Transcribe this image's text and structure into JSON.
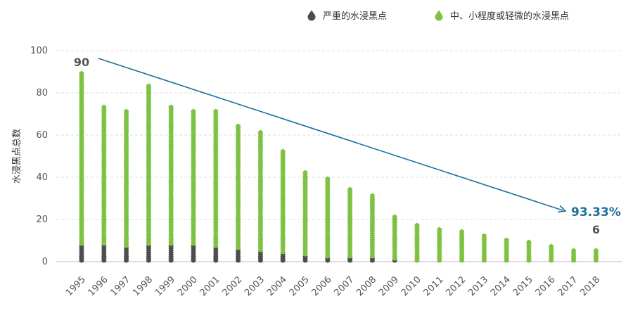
{
  "chart_data": {
    "type": "bar",
    "stacked": true,
    "categories": [
      "1995",
      "1996",
      "1997",
      "1998",
      "1999",
      "2000",
      "2001",
      "2002",
      "2003",
      "2004",
      "2005",
      "2006",
      "2007",
      "2008",
      "2009",
      "2010",
      "2011",
      "2012",
      "2013",
      "2014",
      "2015",
      "2016",
      "2017",
      "2018"
    ],
    "series": [
      {
        "name": "严重的水浸黑点",
        "color": "#4d4d4d",
        "values": [
          8,
          8,
          7,
          8,
          8,
          8,
          7,
          6,
          5,
          4,
          3,
          2,
          2,
          2,
          1,
          0,
          0,
          0,
          0,
          0,
          0,
          0,
          0,
          0
        ]
      },
      {
        "name": "中、小程度或轻微的水浸黑点",
        "color": "#7dc242",
        "values": [
          82,
          66,
          65,
          76,
          66,
          64,
          65,
          59,
          57,
          49,
          40,
          38,
          33,
          30,
          21,
          18,
          16,
          15,
          13,
          11,
          10,
          8,
          6,
          6
        ]
      }
    ],
    "xlabel": "",
    "ylabel": "水浸黑点总数",
    "ylim": [
      0,
      100
    ],
    "yticks": [
      0,
      20,
      40,
      60,
      80,
      100
    ],
    "grid": true,
    "legend_position": "top-right",
    "annotations": {
      "start_value": "90",
      "end_value": "6",
      "reduction": "93.33%",
      "trend_color": "#1f6e9c"
    }
  }
}
